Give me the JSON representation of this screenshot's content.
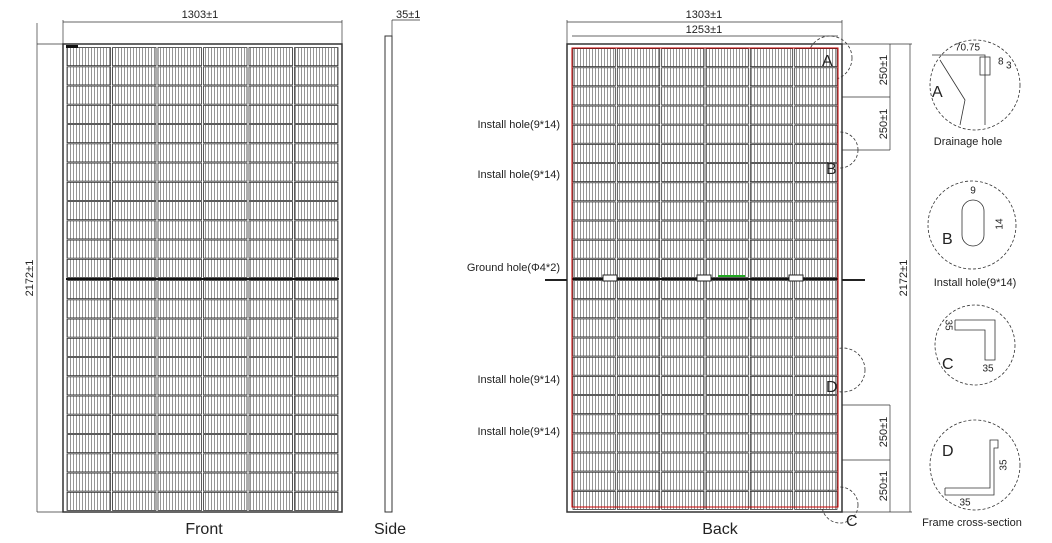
{
  "front": {
    "width": "1303±1",
    "height": "2172±1",
    "label": "Front"
  },
  "side": {
    "thickness": "35±1",
    "label": "Side"
  },
  "back": {
    "width": "1303±1",
    "inner_width": "1253±1",
    "height": "2172±1",
    "label": "Back",
    "markers": [
      "A",
      "B",
      "D",
      "C"
    ],
    "spacings": [
      "250±1",
      "250±1",
      "250±1",
      "250±1"
    ],
    "holes": [
      "Install hole(9*14)",
      "Install hole(9*14)",
      "Ground hole(Φ4*2)",
      "Install hole(9*14)",
      "Install hole(9*14)"
    ]
  },
  "details": [
    {
      "letter": "A",
      "dims": [
        "70.75",
        "8",
        "3"
      ],
      "caption": "Drainage hole"
    },
    {
      "letter": "B",
      "dims": [
        "9",
        "14"
      ],
      "caption": "Install hole(9*14)"
    },
    {
      "letter": "C",
      "dims": [
        "35",
        "35"
      ]
    },
    {
      "letter": "D",
      "dims": [
        "35",
        "35"
      ],
      "caption": "Frame cross-section"
    }
  ]
}
